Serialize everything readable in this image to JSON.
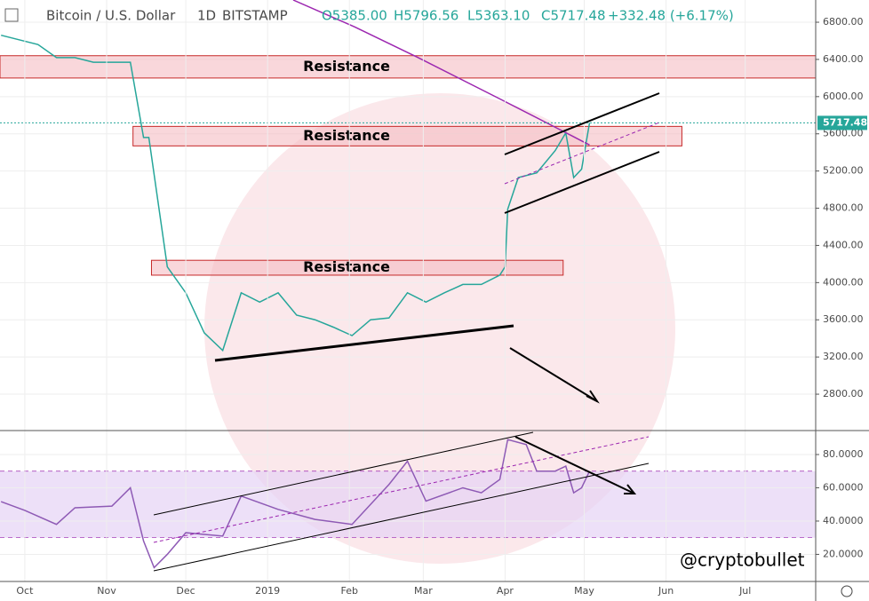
{
  "header": {
    "symbol": "Bitcoin / U.S. Dollar",
    "interval": "1D",
    "exchange": "BITSTAMP",
    "open": "O5385.00",
    "high": "H5796.56",
    "low": "L5363.10",
    "close": "C5717.48",
    "change": "+332.48 (+6.17%)"
  },
  "watermark": "@cryptobullet",
  "chart_data": [
    {
      "type": "line",
      "grid": true,
      "x": [
        -9,
        -2,
        5,
        12,
        19,
        26,
        33,
        40,
        45,
        47,
        54,
        61,
        68,
        75,
        82,
        89,
        96,
        103,
        110,
        117,
        124,
        131,
        138,
        145,
        152,
        159,
        166,
        173,
        180,
        182,
        183,
        187,
        194,
        201,
        205,
        208,
        211,
        214
      ],
      "series": [
        {
          "name": "Bitcoin / U.S. Dollar",
          "color": "#26a69a",
          "values": [
            6660,
            6610,
            6560,
            6420,
            6420,
            6370,
            6370,
            6370,
            5560,
            5560,
            4170,
            3890,
            3460,
            3270,
            3890,
            3790,
            3890,
            3650,
            3600,
            3520,
            3430,
            3600,
            3620,
            3890,
            3790,
            3890,
            3980,
            3980,
            4080,
            4170,
            4790,
            5130,
            5180,
            5420,
            5610,
            5130,
            5220,
            5717.48
          ]
        },
        {
          "color": "#9c27b0",
          "x": [
            101.7,
            125,
            149,
            179,
            199,
            214
          ],
          "values": [
            7039,
            6750,
            6420,
            5990,
            5700,
            5480
          ]
        }
      ],
      "last": {
        "value": 5717.48,
        "label": "5717.48"
      },
      "zones": [
        {
          "label": "Resistance",
          "low": 6200,
          "high": 6440,
          "from": -9.4,
          "to": 299.7
        },
        {
          "label": "Resistance",
          "low": 5470,
          "high": 5680,
          "from": 41,
          "to": 249
        },
        {
          "label": "Resistance",
          "low": 4080,
          "high": 4240,
          "from": 48,
          "to": 204
        }
      ],
      "xlim": [
        -9.4,
        299.7
      ],
      "ylim": [
        2409,
        7039
      ],
      "yticks": [
        {
          "value": 2800,
          "label": "2800.00"
        },
        {
          "value": 3200,
          "label": "3200.00"
        },
        {
          "value": 3600,
          "label": "3600.00"
        },
        {
          "value": 4000,
          "label": "4000.00"
        },
        {
          "value": 4400,
          "label": "4400.00"
        },
        {
          "value": 4800,
          "label": "4800.00"
        },
        {
          "value": 5200,
          "label": "5200.00"
        },
        {
          "value": 5600,
          "label": "5600.00"
        },
        {
          "value": 6000,
          "label": "6000.00"
        },
        {
          "value": 6400,
          "label": "6400.00"
        },
        {
          "value": 6800,
          "label": "6800.00"
        }
      ]
    },
    {
      "type": "line",
      "grid": true,
      "x": [
        -9,
        0,
        12,
        19,
        33,
        40,
        45,
        49,
        54,
        61,
        75,
        82,
        96,
        110,
        124,
        138,
        145,
        152,
        166,
        173,
        180,
        183,
        190,
        194,
        201,
        205,
        208,
        211,
        214
      ],
      "series": [
        {
          "color": "#8e5ab5",
          "values": [
            51.7,
            46.4,
            38,
            48,
            49,
            60,
            28,
            12,
            20,
            33,
            31,
            55,
            47,
            41,
            38,
            62,
            76,
            52,
            60,
            57,
            65,
            89,
            86,
            70,
            70,
            73,
            57,
            60,
            70
          ]
        }
      ],
      "band": [
        30,
        70
      ],
      "xlim": [
        -9.4,
        299.7
      ],
      "ylim": [
        3.7,
        94.4
      ],
      "yticks": [
        {
          "value": 20,
          "label": "20.0000"
        },
        {
          "value": 40,
          "label": "40.0000"
        },
        {
          "value": 60,
          "label": "60.0000"
        },
        {
          "value": 80,
          "label": "80.0000"
        }
      ],
      "xticks": [
        {
          "value": 0,
          "label": "Oct"
        },
        {
          "value": 31,
          "label": "Nov"
        },
        {
          "value": 61,
          "label": "Dec"
        },
        {
          "value": 92,
          "label": "2019"
        },
        {
          "value": 123,
          "label": "Feb"
        },
        {
          "value": 151,
          "label": "Mar"
        },
        {
          "value": 182,
          "label": "Apr"
        },
        {
          "value": 212,
          "label": "May"
        },
        {
          "value": 243,
          "label": "Jun"
        },
        {
          "value": 273,
          "label": "Jul"
        }
      ]
    }
  ]
}
